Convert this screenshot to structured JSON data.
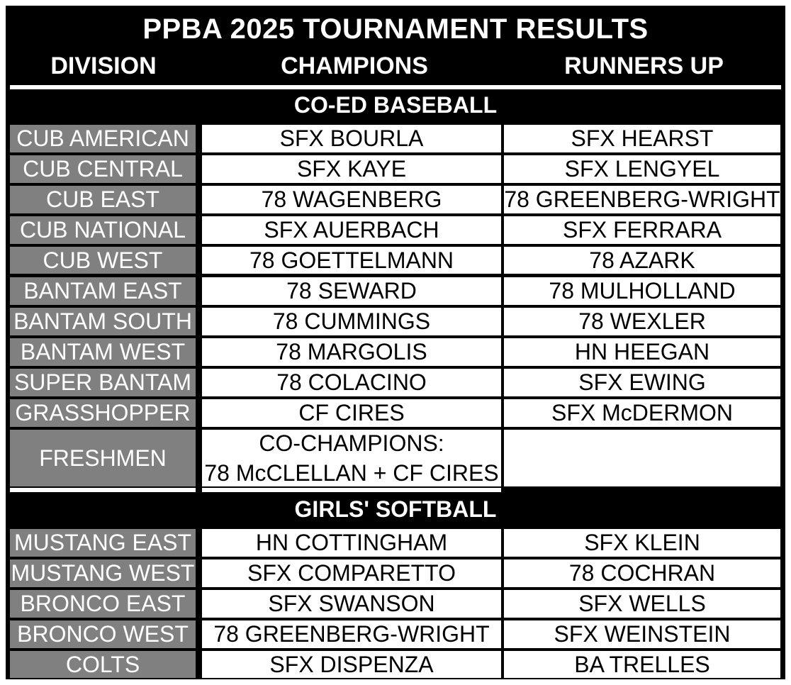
{
  "title": "PPBA 2025 TOURNAMENT RESULTS",
  "headers": {
    "division": "DIVISION",
    "champions": "CHAMPIONS",
    "runners_up": "RUNNERS UP"
  },
  "colors": {
    "background": "#000000",
    "division_cell": "#808080",
    "result_cell": "#ffffff"
  },
  "sections": [
    {
      "name": "CO-ED BASEBALL",
      "rows": [
        {
          "division": "CUB AMERICAN",
          "champion": "SFX BOURLA",
          "runner_up": "SFX HEARST"
        },
        {
          "division": "CUB CENTRAL",
          "champion": "SFX KAYE",
          "runner_up": "SFX LENGYEL"
        },
        {
          "division": "CUB EAST",
          "champion": "78 WAGENBERG",
          "runner_up": "78 GREENBERG-WRIGHT"
        },
        {
          "division": "CUB NATIONAL",
          "champion": "SFX AUERBACH",
          "runner_up": "SFX FERRARA"
        },
        {
          "division": "CUB WEST",
          "champion": "78 GOETTELMANN",
          "runner_up": "78 AZARK"
        },
        {
          "division": "BANTAM EAST",
          "champion": "78 SEWARD",
          "runner_up": "78 MULHOLLAND"
        },
        {
          "division": "BANTAM SOUTH",
          "champion": "78 CUMMINGS",
          "runner_up": "78 WEXLER"
        },
        {
          "division": "BANTAM WEST",
          "champion": "78 MARGOLIS",
          "runner_up": "HN HEEGAN"
        },
        {
          "division": "SUPER BANTAM",
          "champion": "78 COLACINO",
          "runner_up": "SFX EWING"
        },
        {
          "division": "GRASSHOPPER",
          "champion": "CF CIRES",
          "runner_up": "SFX McDERMON"
        },
        {
          "division": "FRESHMEN",
          "champion_line1": "CO-CHAMPIONS:",
          "champion_line2": "78 McCLELLAN + CF CIRES",
          "runner_up": ""
        }
      ]
    },
    {
      "name": "GIRLS' SOFTBALL",
      "rows": [
        {
          "division": "MUSTANG EAST",
          "champion": "HN COTTINGHAM",
          "runner_up": "SFX KLEIN"
        },
        {
          "division": "MUSTANG WEST",
          "champion": "SFX COMPARETTO",
          "runner_up": "78 COCHRAN"
        },
        {
          "division": "BRONCO EAST",
          "champion": "SFX SWANSON",
          "runner_up": "SFX WELLS"
        },
        {
          "division": "BRONCO WEST",
          "champion": "78 GREENBERG-WRIGHT",
          "runner_up": "SFX WEINSTEIN"
        },
        {
          "division": "COLTS",
          "champion": "SFX DISPENZA",
          "runner_up": "BA TRELLES"
        }
      ]
    }
  ]
}
